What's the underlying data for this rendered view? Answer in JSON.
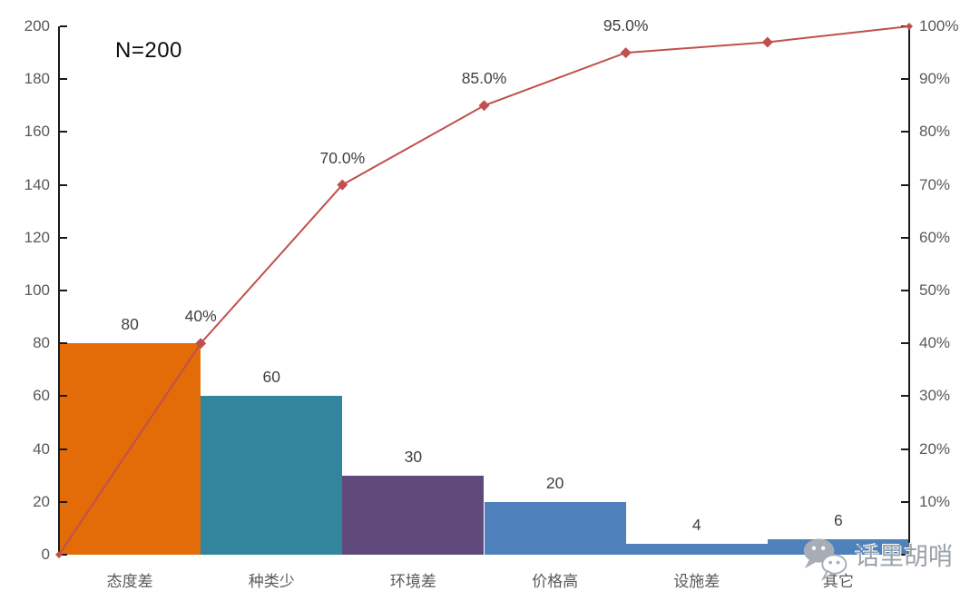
{
  "chart_data": {
    "type": "pareto",
    "title": "",
    "annotation": "N=200",
    "categories": [
      "态度差",
      "种类少",
      "环境差",
      "价格高",
      "设施差",
      "其它"
    ],
    "bar_values": [
      80,
      60,
      30,
      20,
      4,
      6
    ],
    "bar_value_labels": [
      "80",
      "60",
      "30",
      "20",
      "4",
      "6"
    ],
    "bar_colors": [
      "#E36C09",
      "#31859C",
      "#604A7B",
      "#4F81BD",
      "#4F81BD",
      "#4F81BD"
    ],
    "cumulative_line": {
      "color": "#C0504D",
      "starts_at_origin": true,
      "percent_values": [
        40,
        70,
        85,
        95,
        97,
        100
      ],
      "point_labels": [
        "40%",
        "70.0%",
        "85.0%",
        "95.0%",
        ""
      ]
    },
    "left_axis": {
      "min": 0,
      "max": 200,
      "step": 20,
      "tick_labels": [
        "0",
        "20",
        "40",
        "60",
        "80",
        "100",
        "120",
        "140",
        "160",
        "180",
        "200"
      ]
    },
    "right_axis": {
      "min": 0,
      "max": 100,
      "step": 10,
      "tick_labels": [
        "",
        "10%",
        "20%",
        "30%",
        "40%",
        "50%",
        "60%",
        "70%",
        "80%",
        "90%",
        "100%"
      ]
    },
    "grid": false,
    "legend": "none"
  },
  "watermark": {
    "icon": "wechat-icon",
    "text": "话里胡哨"
  }
}
